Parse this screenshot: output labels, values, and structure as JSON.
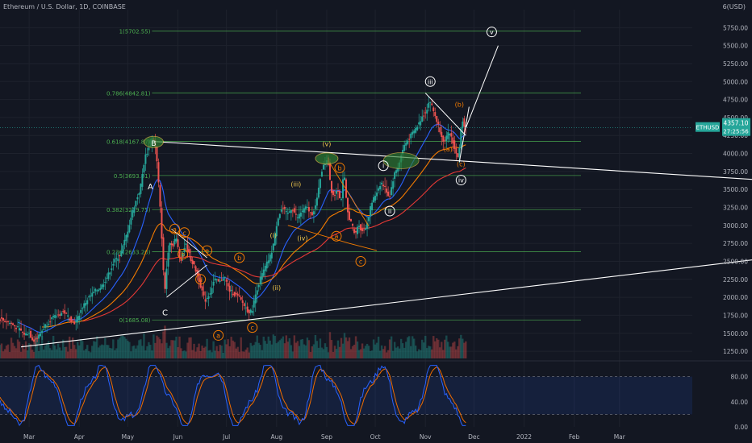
{
  "header": {
    "title": "Ethereum / U.S. Dollar, 1D, COINBASE",
    "currency": "6(USD)"
  },
  "badge": {
    "ticker": "ETHUSD",
    "price": "4357.10",
    "countdown": "27:25:56"
  },
  "colors": {
    "background": "#131722",
    "grid": "#1e222d",
    "up": "#26a69a",
    "down": "#ef5350",
    "fib": "#4caf50",
    "ema_fast": "#2962ff",
    "ema_mid": "#f57c00",
    "ema_slow": "#e53935",
    "wave_white": "#ffffff",
    "wave_orange": "#f57c00",
    "wave_yellow": "#f2c94c",
    "stoch_k": "#2962ff",
    "stoch_d": "#ef6c00"
  },
  "chart_data": {
    "type": "candlestick",
    "symbol": "ETHUSD",
    "price_axis": {
      "ticks": [
        1250,
        1500,
        1750,
        2000,
        2250,
        2500,
        2750,
        3000,
        3250,
        3500,
        3750,
        4000,
        4250,
        4500,
        4750,
        5000,
        5250,
        5500,
        5750
      ],
      "range": [
        1150,
        6000
      ],
      "current": 4357.1
    },
    "time_axis": {
      "labels": [
        "Mar",
        "Apr",
        "May",
        "Jun",
        "Jul",
        "Aug",
        "Sep",
        "Oct",
        "Nov",
        "Dec",
        "2022",
        "Feb",
        "Mar"
      ],
      "label_days": [
        0,
        31,
        61,
        92,
        122,
        153,
        184,
        214,
        245,
        275,
        306,
        337,
        365
      ],
      "range_days": [
        -18,
        410
      ]
    },
    "price_path": [
      [
        -18,
        1700
      ],
      [
        -12,
        1650
      ],
      [
        -6,
        1560
      ],
      [
        -2,
        1480
      ],
      [
        0,
        1520
      ],
      [
        3,
        1400
      ],
      [
        6,
        1450
      ],
      [
        10,
        1600
      ],
      [
        14,
        1700
      ],
      [
        18,
        1750
      ],
      [
        22,
        1800
      ],
      [
        26,
        1690
      ],
      [
        29,
        1640
      ],
      [
        33,
        1850
      ],
      [
        37,
        1990
      ],
      [
        41,
        2080
      ],
      [
        45,
        2150
      ],
      [
        49,
        2300
      ],
      [
        53,
        2500
      ],
      [
        57,
        2600
      ],
      [
        61,
        2900
      ],
      [
        65,
        3250
      ],
      [
        69,
        3500
      ],
      [
        72,
        3950
      ],
      [
        75,
        4100
      ],
      [
        77,
        4250
      ],
      [
        79,
        4000
      ],
      [
        81,
        3400
      ],
      [
        83,
        2600
      ],
      [
        84,
        2000
      ],
      [
        85,
        2300
      ],
      [
        87,
        2800
      ],
      [
        89,
        2700
      ],
      [
        91,
        2850
      ],
      [
        94,
        2500
      ],
      [
        97,
        2750
      ],
      [
        100,
        2550
      ],
      [
        103,
        2400
      ],
      [
        106,
        2200
      ],
      [
        109,
        1950
      ],
      [
        112,
        2050
      ],
      [
        115,
        2250
      ],
      [
        118,
        2200
      ],
      [
        121,
        2300
      ],
      [
        124,
        2100
      ],
      [
        127,
        2050
      ],
      [
        130,
        2000
      ],
      [
        133,
        1900
      ],
      [
        136,
        1800
      ],
      [
        138,
        1800
      ],
      [
        141,
        2100
      ],
      [
        144,
        2300
      ],
      [
        147,
        2450
      ],
      [
        150,
        2600
      ],
      [
        152,
        2800
      ],
      [
        154,
        3100
      ],
      [
        157,
        3250
      ],
      [
        160,
        3150
      ],
      [
        163,
        3250
      ],
      [
        166,
        3100
      ],
      [
        169,
        3200
      ],
      [
        172,
        3250
      ],
      [
        175,
        3150
      ],
      [
        178,
        3300
      ],
      [
        181,
        3750
      ],
      [
        183,
        3850
      ],
      [
        185,
        3950
      ],
      [
        187,
        3500
      ],
      [
        189,
        3400
      ],
      [
        191,
        3550
      ],
      [
        193,
        3300
      ],
      [
        195,
        3750
      ],
      [
        197,
        3200
      ],
      [
        200,
        3000
      ],
      [
        202,
        2850
      ],
      [
        204,
        3050
      ],
      [
        206,
        2900
      ],
      [
        209,
        3000
      ],
      [
        212,
        3300
      ],
      [
        215,
        3450
      ],
      [
        218,
        3600
      ],
      [
        221,
        3500
      ],
      [
        223,
        3380
      ],
      [
        226,
        3700
      ],
      [
        229,
        3850
      ],
      [
        232,
        4100
      ],
      [
        235,
        4200
      ],
      [
        238,
        4300
      ],
      [
        241,
        4400
      ],
      [
        243,
        4500
      ],
      [
        246,
        4600
      ],
      [
        248,
        4750
      ],
      [
        251,
        4550
      ],
      [
        254,
        4350
      ],
      [
        257,
        4150
      ],
      [
        260,
        4300
      ],
      [
        262,
        4200
      ],
      [
        264,
        4000
      ],
      [
        266,
        3950
      ],
      [
        268,
        4500
      ],
      [
        270,
        4357
      ]
    ],
    "volume_note": "volume bars under price",
    "fib_levels": [
      {
        "ratio": "1",
        "price": 5702.55,
        "label": "1(5702.55)"
      },
      {
        "ratio": "0.786",
        "price": 4842.81,
        "label": "0.786(4842.81)"
      },
      {
        "ratio": "0.618",
        "price": 4167.87,
        "label": "0.618(4167.87)"
      },
      {
        "ratio": "0.5",
        "price": 3693.81,
        "label": "0.5(3693.81)"
      },
      {
        "ratio": "0.382",
        "price": 3219.75,
        "label": "0.382(3219.75)"
      },
      {
        "ratio": "0.236",
        "price": 2633.2,
        "label": "0.236(2633.20)"
      },
      {
        "ratio": "0",
        "price": 1685.08,
        "label": "0(1685.08)"
      }
    ],
    "stochastic": {
      "ticks": [
        0,
        40,
        80
      ],
      "tick_labels": [
        "0.00",
        "40.00",
        "80.00"
      ],
      "band": [
        20,
        80
      ]
    },
    "annotations": {
      "white_letters": [
        "A",
        "B",
        "C"
      ],
      "orange_abc_1": [
        "a",
        "b",
        "c",
        "d",
        "e"
      ],
      "orange_abc_2": [
        "a",
        "b",
        "c"
      ],
      "orange_abc_3": [
        "a",
        "b",
        "c"
      ],
      "orange_abc_4": [
        "(a)",
        "(b)",
        "(c)"
      ],
      "yellow_waves": [
        "(i)",
        "(ii)",
        "(iii)",
        "(iv)",
        "(v)"
      ],
      "white_waves": [
        "i",
        "ii",
        "iii",
        "iv",
        "v"
      ]
    }
  }
}
